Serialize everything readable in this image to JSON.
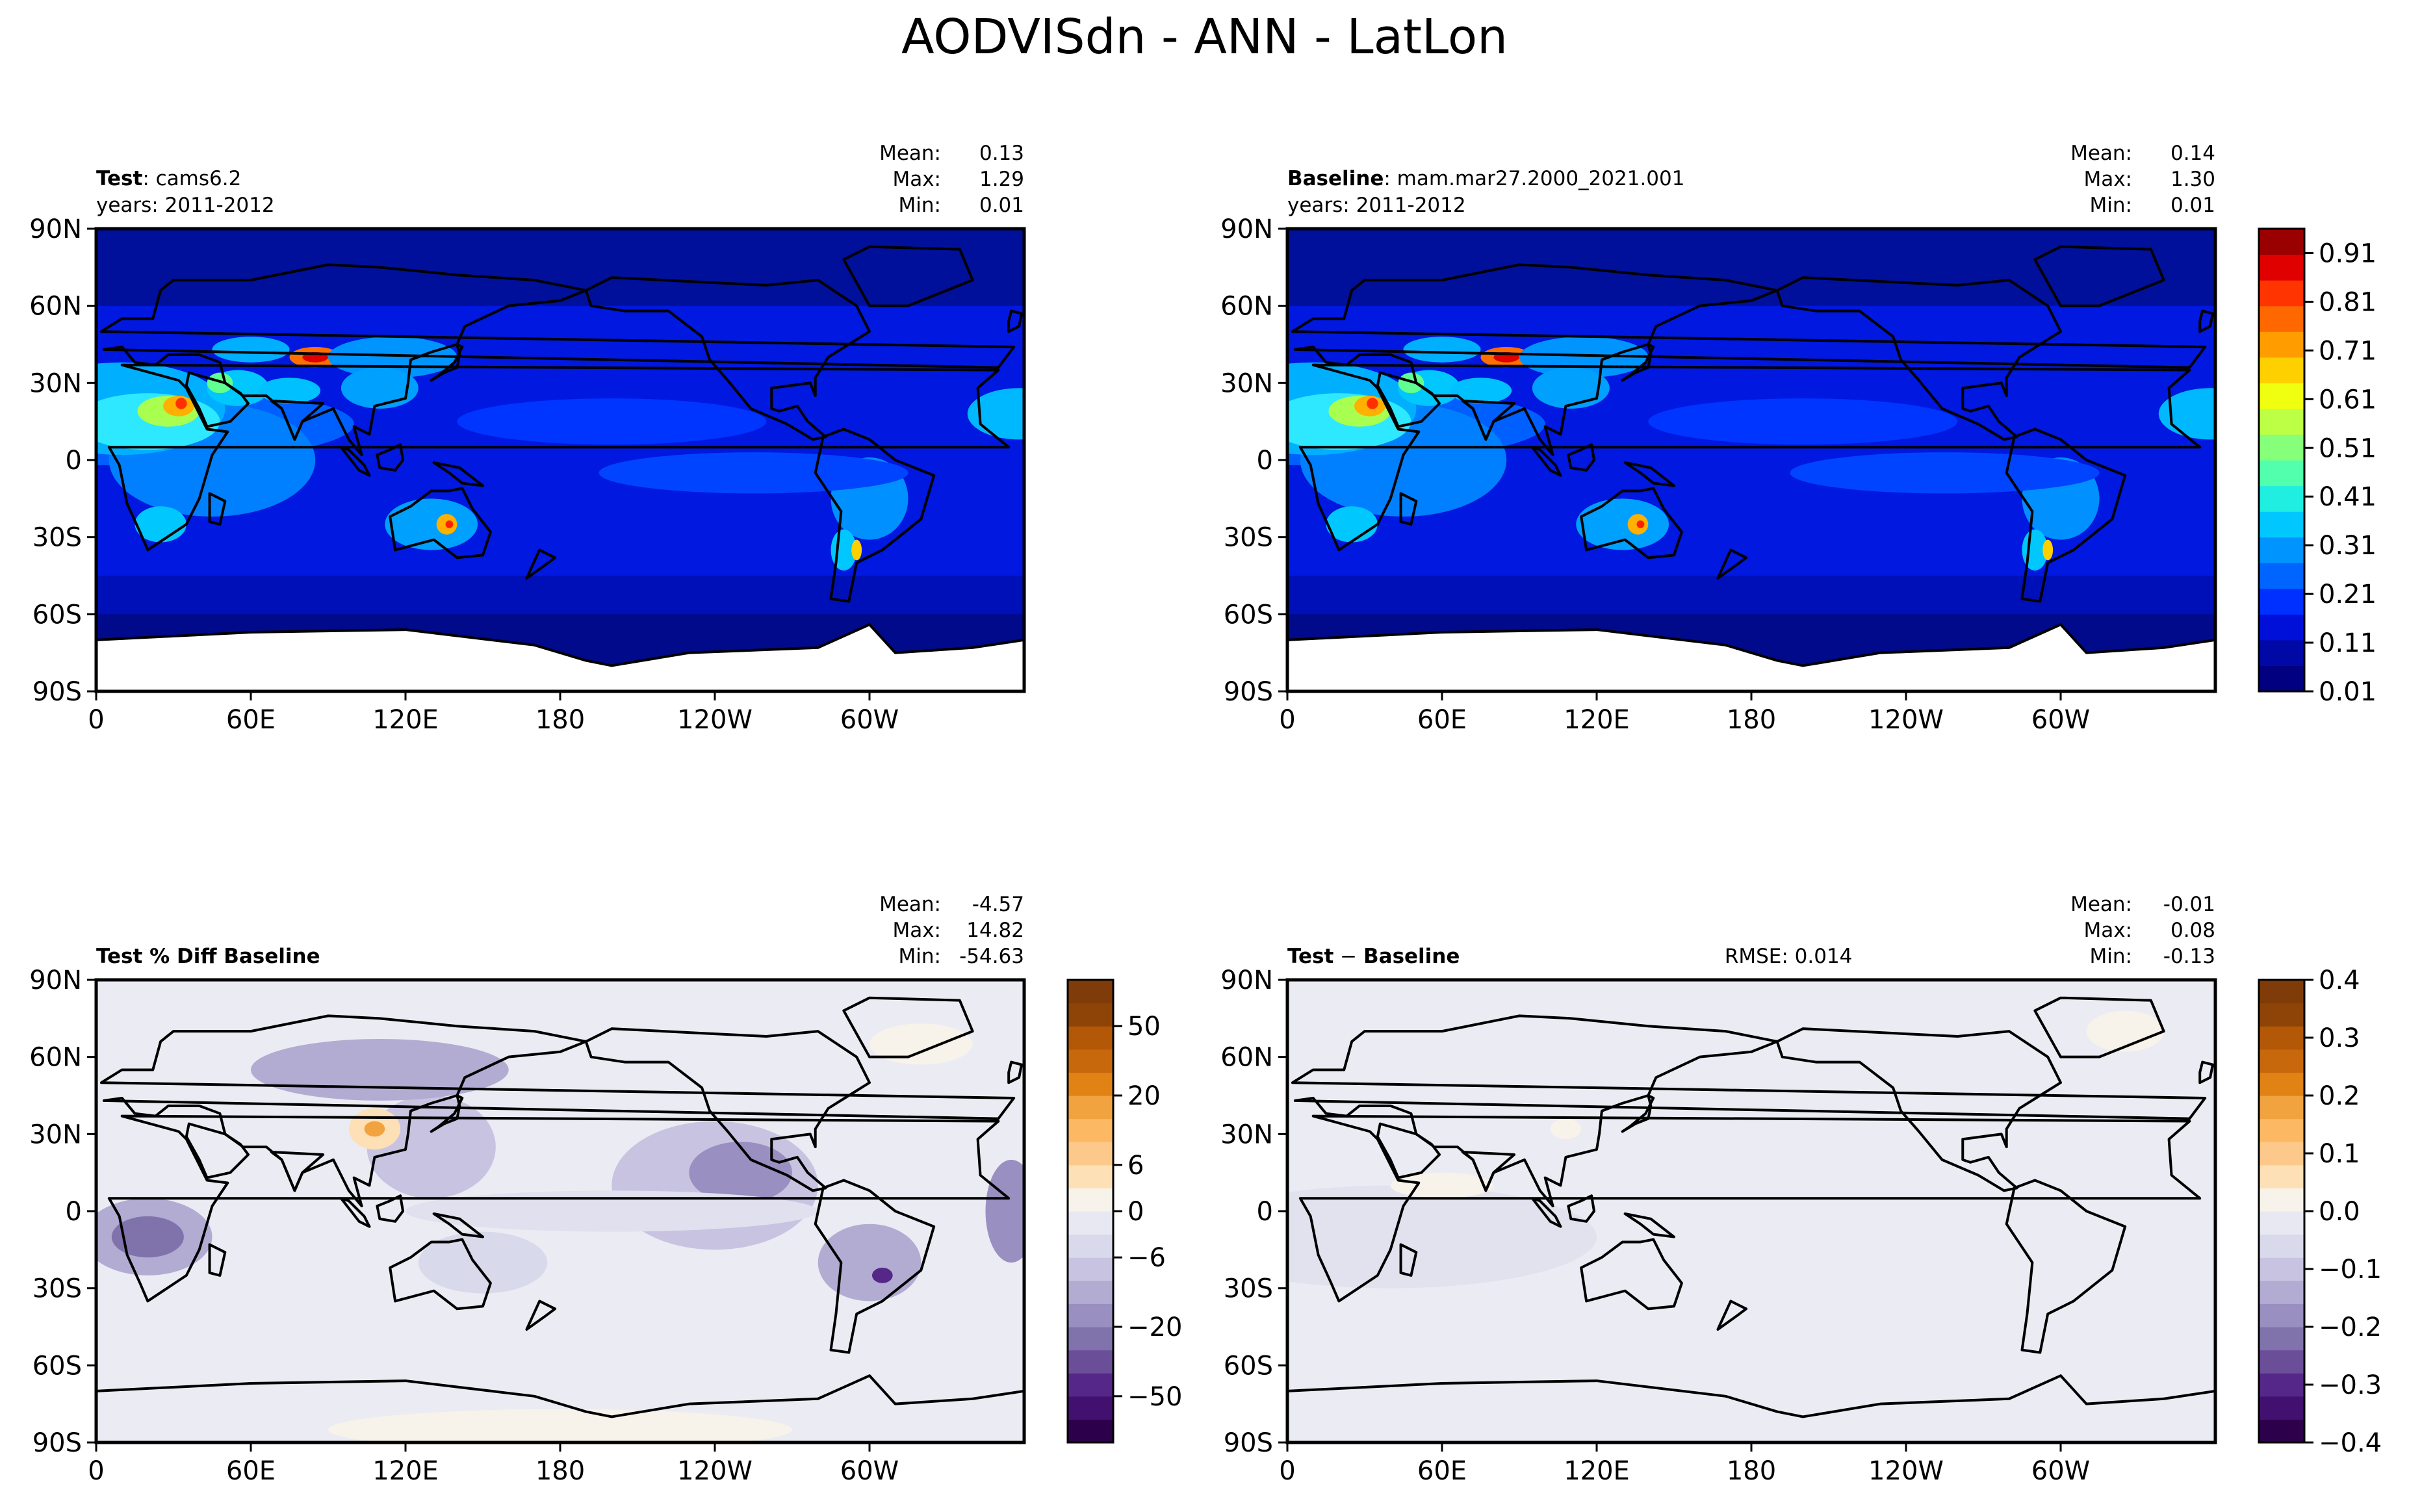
{
  "title": "AODVISdn - ANN - LatLon",
  "xticks": [
    "0",
    "60E",
    "120E",
    "180",
    "120W",
    "60W"
  ],
  "yticks": [
    "90N",
    "60N",
    "30N",
    "0",
    "30S",
    "60S",
    "90S"
  ],
  "panels": [
    {
      "key": "test",
      "label_bold": "Test",
      "label_rest": ": cams6.2",
      "years": "years: 2011-2012",
      "stats": [
        {
          "name": "Mean:",
          "value": "0.13"
        },
        {
          "name": "Max:",
          "value": "1.29"
        },
        {
          "name": "Min:",
          "value": "0.01"
        }
      ],
      "rmse": ""
    },
    {
      "key": "baseline",
      "label_bold": "Baseline",
      "label_rest": ": mam.mar27.2000_2021.001",
      "years": "years: 2011-2012",
      "stats": [
        {
          "name": "Mean:",
          "value": "0.14"
        },
        {
          "name": "Max:",
          "value": "1.30"
        },
        {
          "name": "Min:",
          "value": "0.01"
        }
      ],
      "rmse": ""
    },
    {
      "key": "pctdiff",
      "label_bold": "Test % Diff Baseline",
      "label_rest": "",
      "years": "",
      "stats": [
        {
          "name": "Mean:",
          "value": "-4.57"
        },
        {
          "name": "Max:",
          "value": "14.82"
        },
        {
          "name": "Min:",
          "value": "-54.63"
        }
      ],
      "rmse": ""
    },
    {
      "key": "diff",
      "label_bold": "Test",
      "label_sep": "−",
      "label_bold2": "Baseline",
      "label_rest": "",
      "years": "",
      "stats": [
        {
          "name": "Mean:",
          "value": "-0.01"
        },
        {
          "name": "Max:",
          "value": "0.08"
        },
        {
          "name": "Min:",
          "value": "-0.13"
        }
      ],
      "rmse": "RMSE: 0.014"
    }
  ],
  "colorbars": {
    "test_baseline": {
      "colors": [
        "#000080",
        "#0008a6",
        "#0010d8",
        "#0030ff",
        "#0064ff",
        "#0094ff",
        "#00c8ff",
        "#20eee0",
        "#52ffac",
        "#86ff7a",
        "#bcff44",
        "#f0ff10",
        "#ffd000",
        "#ff9c00",
        "#ff6800",
        "#ff3400",
        "#e00000",
        "#9a0000"
      ],
      "tick_labels": [
        "0.01",
        "0.11",
        "0.21",
        "0.31",
        "0.41",
        "0.51",
        "0.61",
        "0.71",
        "0.81",
        "0.91"
      ],
      "tick_values": [
        0.01,
        0.11,
        0.21,
        0.31,
        0.41,
        0.51,
        0.61,
        0.71,
        0.81,
        0.91
      ],
      "range": [
        0.01,
        0.96
      ]
    },
    "pctdiff": {
      "colors": [
        "#2d004b",
        "#42106e",
        "#542788",
        "#6a4e98",
        "#8073ac",
        "#998fc0",
        "#b2abd2",
        "#c8c3e0",
        "#d8daeb",
        "#e8e8f2",
        "#f7f2ea",
        "#fee0b6",
        "#fdc98a",
        "#fdb863",
        "#f1a340",
        "#e08214",
        "#c8680c",
        "#b35806",
        "#8e4406",
        "#7f3b08"
      ],
      "tick_labels": [
        "−50",
        "−20",
        "−6",
        "0",
        "6",
        "20",
        "50"
      ],
      "tick_positions": [
        2,
        5,
        8,
        10,
        12,
        15,
        18
      ],
      "n_levels": 20
    },
    "diff": {
      "colors": [
        "#2d004b",
        "#42106e",
        "#542788",
        "#6a4e98",
        "#8073ac",
        "#998fc0",
        "#b2abd2",
        "#c8c3e0",
        "#d8daeb",
        "#e8e8f2",
        "#f7f2ea",
        "#fee0b6",
        "#fdc98a",
        "#fdb863",
        "#f1a340",
        "#e08214",
        "#c8680c",
        "#b35806",
        "#8e4406",
        "#7f3b08"
      ],
      "tick_labels": [
        "−0.4",
        "−0.3",
        "−0.2",
        "−0.1",
        "0.0",
        "0.1",
        "0.2",
        "0.3",
        "0.4"
      ],
      "tick_values": [
        -0.4,
        -0.3,
        -0.2,
        -0.1,
        0.0,
        0.1,
        0.2,
        0.3,
        0.4
      ],
      "range": [
        -0.4,
        0.4
      ]
    }
  },
  "chart_data": [
    {
      "type": "heatmap",
      "title": "Test: cams6.2",
      "subtitle": "years: 2011-2012",
      "x_ticks": [
        "0",
        "60E",
        "120E",
        "180",
        "120W",
        "60W"
      ],
      "y_ticks": [
        "90N",
        "60N",
        "30N",
        "0",
        "30S",
        "60S",
        "90S"
      ],
      "xlim": [
        0,
        360
      ],
      "ylim": [
        -90,
        90
      ],
      "stats": {
        "mean": 0.13,
        "max": 1.29,
        "min": 0.01
      },
      "colorbar_range": [
        0.01,
        0.96
      ]
    },
    {
      "type": "heatmap",
      "title": "Baseline: mam.mar27.2000_2021.001",
      "subtitle": "years: 2011-2012",
      "x_ticks": [
        "0",
        "60E",
        "120E",
        "180",
        "120W",
        "60W"
      ],
      "y_ticks": [
        "90N",
        "60N",
        "30N",
        "0",
        "30S",
        "60S",
        "90S"
      ],
      "xlim": [
        0,
        360
      ],
      "ylim": [
        -90,
        90
      ],
      "stats": {
        "mean": 0.14,
        "max": 1.3,
        "min": 0.01
      },
      "colorbar_range": [
        0.01,
        0.96
      ]
    },
    {
      "type": "heatmap",
      "title": "Test % Diff Baseline",
      "x_ticks": [
        "0",
        "60E",
        "120E",
        "180",
        "120W",
        "60W"
      ],
      "y_ticks": [
        "90N",
        "60N",
        "30N",
        "0",
        "30S",
        "60S",
        "90S"
      ],
      "xlim": [
        0,
        360
      ],
      "ylim": [
        -90,
        90
      ],
      "stats": {
        "mean": -4.57,
        "max": 14.82,
        "min": -54.63
      }
    },
    {
      "type": "heatmap",
      "title": "Test − Baseline",
      "x_ticks": [
        "0",
        "60E",
        "120E",
        "180",
        "120W",
        "60W"
      ],
      "y_ticks": [
        "90N",
        "60N",
        "30N",
        "0",
        "30S",
        "60S",
        "90S"
      ],
      "xlim": [
        0,
        360
      ],
      "ylim": [
        -90,
        90
      ],
      "stats": {
        "mean": -0.01,
        "max": 0.08,
        "min": -0.13
      },
      "rmse": 0.014,
      "colorbar_range": [
        -0.4,
        0.4
      ]
    }
  ]
}
